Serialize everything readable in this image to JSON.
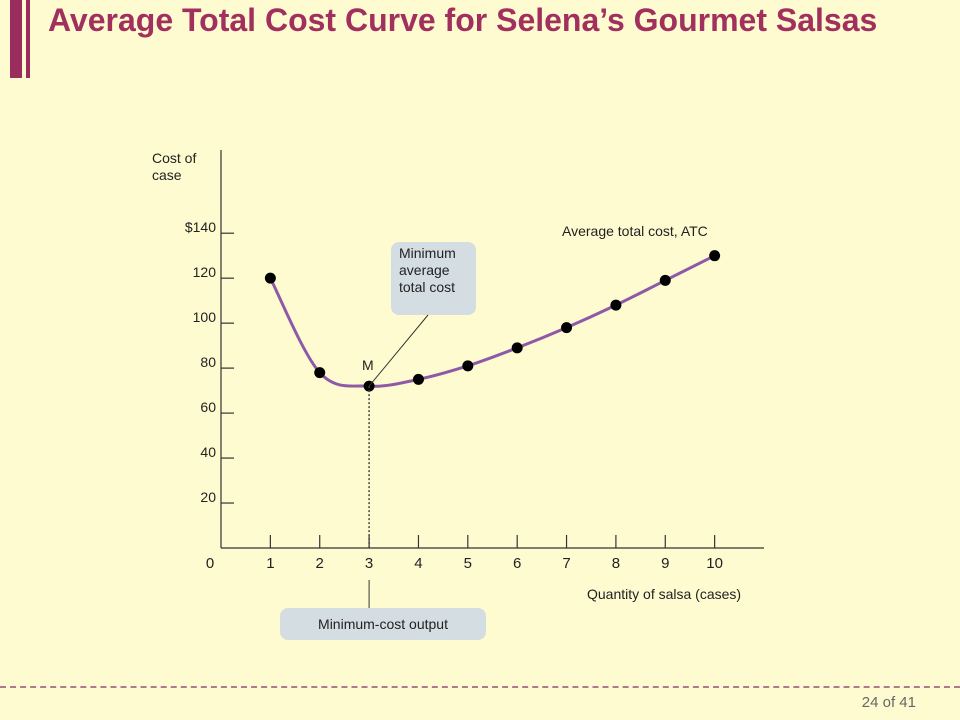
{
  "slide": {
    "title": "Average Total Cost Curve for Selena’s Gourmet Salsas",
    "page": "24 of 41"
  },
  "chart_data": {
    "type": "line",
    "ylabel": "Cost of case",
    "xlabel": "Quantity of salsa (cases)",
    "x_ticks": [
      "0",
      "1",
      "2",
      "3",
      "4",
      "5",
      "6",
      "7",
      "8",
      "9",
      "10"
    ],
    "y_ticks": [
      "20",
      "40",
      "60",
      "80",
      "100",
      "120",
      "$140"
    ],
    "y_tick_values": [
      20,
      40,
      60,
      80,
      100,
      120,
      140
    ],
    "xlim": [
      0,
      11
    ],
    "ylim": [
      0,
      177
    ],
    "series": [
      {
        "name": "Average total cost, ATC",
        "x": [
          1,
          2,
          3,
          4,
          5,
          6,
          7,
          8,
          9,
          10
        ],
        "y": [
          120,
          78,
          72,
          75,
          81,
          89,
          98,
          108,
          119,
          130
        ]
      }
    ],
    "annotations": {
      "point_label": "M",
      "min_callout": [
        "Minimum",
        "average",
        "total cost"
      ],
      "min_cost_output": "Minimum-cost output",
      "min_x": 3,
      "min_y": 72
    },
    "colors": {
      "curve": "#8e5aa8",
      "callout_fill": "#d4dde2",
      "title": "#a2305f"
    }
  }
}
